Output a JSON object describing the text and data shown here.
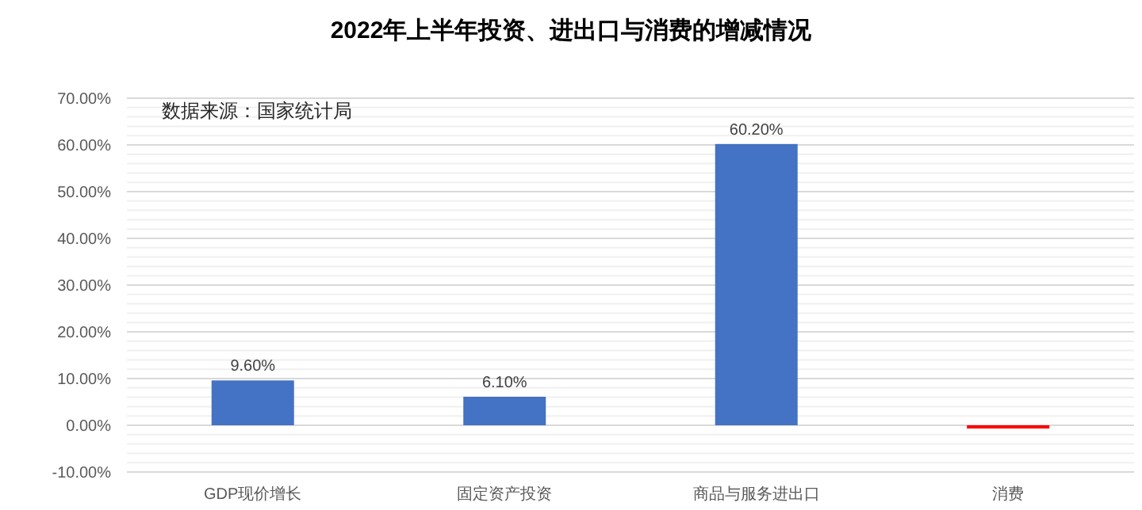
{
  "chart_data": {
    "type": "bar",
    "title": "2022年上半年投资、进出口与消费的增减情况",
    "categories": [
      "GDP现价增长",
      "固定资产投资",
      "商品与服务进出口",
      "消费"
    ],
    "values": [
      9.6,
      6.1,
      60.2,
      -0.7
    ],
    "colors": [
      "#4472c4",
      "#4472c4",
      "#4472c4",
      "#ff0000"
    ],
    "value_labels": [
      "9.60%",
      "6.10%",
      "60.20%",
      null
    ],
    "ylim": [
      -10,
      70
    ],
    "yticks": [
      {
        "value": -10,
        "label": "-10.00%"
      },
      {
        "value": 0,
        "label": "0.00%"
      },
      {
        "value": 10,
        "label": "10.00%"
      },
      {
        "value": 20,
        "label": "20.00%"
      },
      {
        "value": 30,
        "label": "30.00%"
      },
      {
        "value": 40,
        "label": "40.00%"
      },
      {
        "value": 50,
        "label": "50.00%"
      },
      {
        "value": 60,
        "label": "60.00%"
      },
      {
        "value": 70,
        "label": "70.00%"
      }
    ],
    "grid": "y",
    "annotations": [
      "数据来源：国家统计局"
    ]
  }
}
